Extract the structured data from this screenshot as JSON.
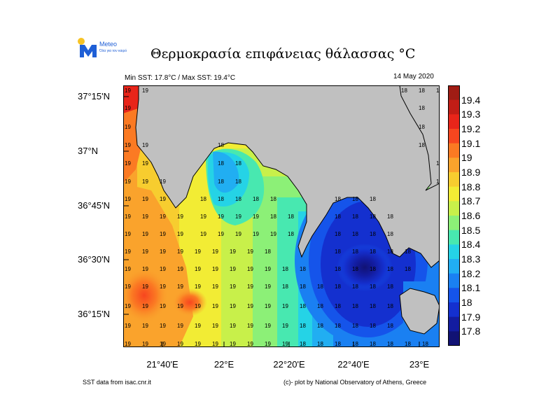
{
  "header": {
    "logo_text": "Meteo",
    "logo_tagline": "Όλα για τον καιρό",
    "title": "Θερμοκρασία  επιφάνειας θάλασσας",
    "title_unit": "°C",
    "min_max": "Min SST: 17.8°C / Max SST: 19.4°C",
    "date": "14 May 2020"
  },
  "axes": {
    "lat_labels": [
      "37°15'N",
      "37°N",
      "36°45'N",
      "36°30'N",
      "36°15'N"
    ],
    "lon_labels": [
      "21°40'E",
      "22°E",
      "22°20'E",
      "22°40'E",
      "23°E"
    ]
  },
  "colorbar": {
    "labels": [
      "19.4",
      "19.3",
      "19.2",
      "19.1",
      "19",
      "18.9",
      "18.8",
      "18.7",
      "18.6",
      "18.5",
      "18.4",
      "18.3",
      "18.2",
      "18.1",
      "18",
      "17.9",
      "17.8"
    ],
    "colors": [
      "#a01c14",
      "#c21d16",
      "#e8251a",
      "#f7461f",
      "#fb7a23",
      "#faa32c",
      "#f7cd2f",
      "#f2ec34",
      "#c8f04a",
      "#8cf077",
      "#48e8b0",
      "#25d3e6",
      "#21aef2",
      "#1a80f2",
      "#1554ea",
      "#1430cf",
      "#131ca0",
      "#111274"
    ]
  },
  "map": {
    "land_color": "#c0c0c0",
    "grid_value_labels": [
      "19",
      "18"
    ]
  },
  "footer": {
    "source": "SST data from isac.cnr.it",
    "credit": "(c)- plot by National Observatory of Athens, Greece"
  },
  "chart_data": {
    "type": "heatmap",
    "title": "Θερμοκρασία  επιφάνειας θάλασσας °C",
    "min_sst": 17.8,
    "max_sst": 19.4,
    "unit": "°C",
    "date": "14 May 2020",
    "lat_range": [
      36.07,
      37.32
    ],
    "lon_range": [
      21.55,
      23.2
    ],
    "colorbar_range": [
      17.75,
      19.45
    ],
    "colorbar_ticks": [
      19.4,
      19.3,
      19.2,
      19.1,
      19,
      18.9,
      18.8,
      18.7,
      18.6,
      18.5,
      18.4,
      18.3,
      18.2,
      18.1,
      18,
      17.9,
      17.8
    ]
  }
}
